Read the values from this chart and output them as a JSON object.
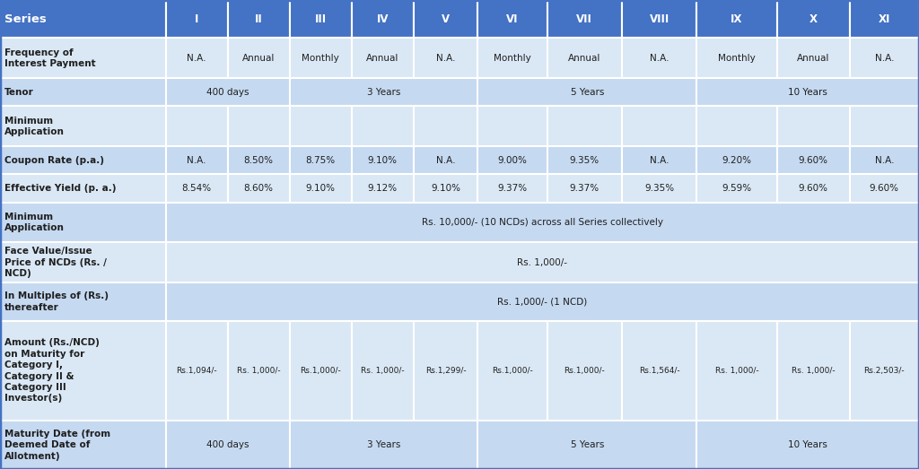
{
  "header_bg": "#4472C4",
  "header_text_color": "#FFFFFF",
  "row_bg_odd": "#C5D9F1",
  "row_bg_even": "#DAE8F5",
  "cell_text_color": "#1F1F1F",
  "border_color": "#FFFFFF",
  "columns": [
    "Series",
    "I",
    "II",
    "III",
    "IV",
    "V",
    "VI",
    "VII",
    "VIII",
    "IX",
    "X",
    "XI"
  ],
  "col_widths_raw": [
    155,
    58,
    58,
    58,
    58,
    60,
    65,
    70,
    70,
    75,
    68,
    65
  ],
  "row_heights_raw": [
    38,
    40,
    28,
    40,
    28,
    28,
    40,
    40,
    38,
    100,
    48
  ],
  "rows": [
    {
      "label": "Frequency of\nInterest Payment",
      "type": "individual",
      "values": [
        "N.A.",
        "Annual",
        "Monthly",
        "Annual",
        "N.A.",
        "Monthly",
        "Annual",
        "N.A.",
        "Monthly",
        "Annual",
        "N.A."
      ]
    },
    {
      "label": "Tenor",
      "type": "grouped",
      "groups": [
        {
          "span": [
            1,
            2
          ],
          "text": "400 days"
        },
        {
          "span": [
            3,
            5
          ],
          "text": "3 Years"
        },
        {
          "span": [
            6,
            8
          ],
          "text": "5 Years"
        },
        {
          "span": [
            9,
            11
          ],
          "text": "10 Years"
        }
      ]
    },
    {
      "label": "Minimum\nApplication",
      "type": "individual",
      "values": [
        "",
        "",
        "",
        "",
        "",
        "",
        "",
        "",
        "",
        "",
        ""
      ]
    },
    {
      "label": "Coupon Rate (p.a.)",
      "type": "individual",
      "values": [
        "N.A.",
        "8.50%",
        "8.75%",
        "9.10%",
        "N.A.",
        "9.00%",
        "9.35%",
        "N.A.",
        "9.20%",
        "9.60%",
        "N.A."
      ]
    },
    {
      "label": "Effective Yield (p. a.)",
      "type": "individual",
      "values": [
        "8.54%",
        "8.60%",
        "9.10%",
        "9.12%",
        "9.10%",
        "9.37%",
        "9.37%",
        "9.35%",
        "9.59%",
        "9.60%",
        "9.60%"
      ]
    },
    {
      "label": "Minimum\nApplication",
      "type": "full_span",
      "text": "Rs. 10,000/- (10 NCDs) across all Series collectively"
    },
    {
      "label": "Face Value/Issue\nPrice of NCDs (Rs. /\nNCD)",
      "type": "full_span",
      "text": "Rs. 1,000/-"
    },
    {
      "label": "In Multiples of (Rs.)\nthereafter",
      "type": "full_span",
      "text": "Rs. 1,000/- (1 NCD)"
    },
    {
      "label": "Amount (Rs./NCD)\non Maturity for\nCategory I,\nCategory II &\nCategory III\nInvestor(s)",
      "type": "individual",
      "values": [
        "Rs.1,094/-",
        "Rs. 1,000/-",
        "Rs.1,000/-",
        "Rs. 1,000/-",
        "Rs.1,299/-",
        "Rs.1,000/-",
        "Rs.1,000/-",
        "Rs.1,564/-",
        "Rs. 1,000/-",
        "Rs. 1,000/-",
        "Rs.2,503/-"
      ]
    },
    {
      "label": "Maturity Date (from\nDeemed Date of\nAllotment)",
      "type": "grouped",
      "groups": [
        {
          "span": [
            1,
            2
          ],
          "text": "400 days"
        },
        {
          "span": [
            3,
            5
          ],
          "text": "3 Years"
        },
        {
          "span": [
            6,
            8
          ],
          "text": "5 Years"
        },
        {
          "span": [
            9,
            11
          ],
          "text": "10 Years"
        }
      ]
    }
  ]
}
